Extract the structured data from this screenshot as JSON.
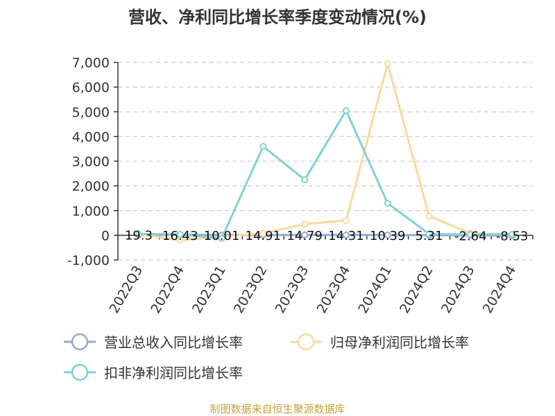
{
  "chart_data": {
    "type": "line",
    "title": "营收、净利同比增长率季度变动情况(%)",
    "categories": [
      "2022Q3",
      "2022Q4",
      "2023Q1",
      "2023Q2",
      "2023Q3",
      "2023Q4",
      "2024Q1",
      "2024Q2",
      "2024Q3",
      "2024Q4"
    ],
    "ylim": [
      -1000,
      7000
    ],
    "yticks": [
      -1000,
      0,
      1000,
      2000,
      3000,
      4000,
      5000,
      6000,
      7000
    ],
    "ytick_labels": [
      "-1,000",
      "0",
      "1,000",
      "2,000",
      "3,000",
      "4,000",
      "5,000",
      "6,000",
      "7,000"
    ],
    "grid": true,
    "legend_position": "bottom-left",
    "series": [
      {
        "name": "营业总收入同比增长率",
        "color": "#91a9d8",
        "values": [
          19.3,
          16.43,
          10.01,
          14.91,
          14.79,
          14.31,
          10.39,
          5.31,
          -2.64,
          -8.53
        ],
        "labels": [
          "19.3",
          "16.43",
          "10.01",
          "14.91",
          "14.79",
          "14.31",
          "10.39",
          "5.31",
          "-2.64",
          "-8.53"
        ]
      },
      {
        "name": "归母净利润同比增长率",
        "color": "#fad99b",
        "values": [
          50,
          -200,
          -60,
          80,
          450,
          600,
          6950,
          780,
          80,
          40
        ]
      },
      {
        "name": "扣非净利润同比增长率",
        "color": "#7fd1d6",
        "values": [
          50,
          40,
          -130,
          3600,
          2250,
          5050,
          1300,
          50,
          30,
          30
        ]
      }
    ]
  },
  "source": "制图数据来自恒生聚源数据库"
}
